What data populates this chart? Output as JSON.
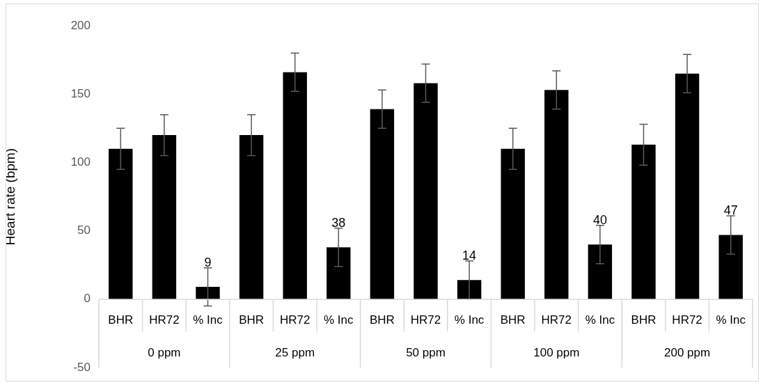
{
  "chart_data": {
    "type": "bar",
    "ylabel": "Heart rate (bpm)",
    "categories": [
      "BHR",
      "HR72",
      "% Inc",
      "BHR",
      "HR72",
      "% Inc",
      "BHR",
      "HR72",
      "% Inc",
      "BHR",
      "HR72",
      "% Inc",
      "BHR",
      "HR72",
      "% Inc"
    ],
    "annotations": [
      "0 ppm",
      "25 ppm",
      "50 ppm",
      "100 ppm",
      "200 ppm"
    ],
    "values": [
      110,
      120,
      9,
      120,
      166,
      38,
      139,
      158,
      14,
      110,
      153,
      40,
      113,
      165,
      47
    ],
    "errors": [
      15,
      15,
      14,
      15,
      14,
      14,
      14,
      14,
      14,
      15,
      14,
      14,
      15,
      14,
      14
    ],
    "value_labels": [
      null,
      null,
      "9",
      null,
      null,
      "38",
      null,
      null,
      "14",
      null,
      null,
      "40",
      null,
      null,
      "47"
    ],
    "color": "#000000",
    "ylim": [
      -50,
      200
    ],
    "yticks": [
      -50,
      0,
      50,
      100,
      150,
      200
    ],
    "grid": false,
    "legend": false
  }
}
